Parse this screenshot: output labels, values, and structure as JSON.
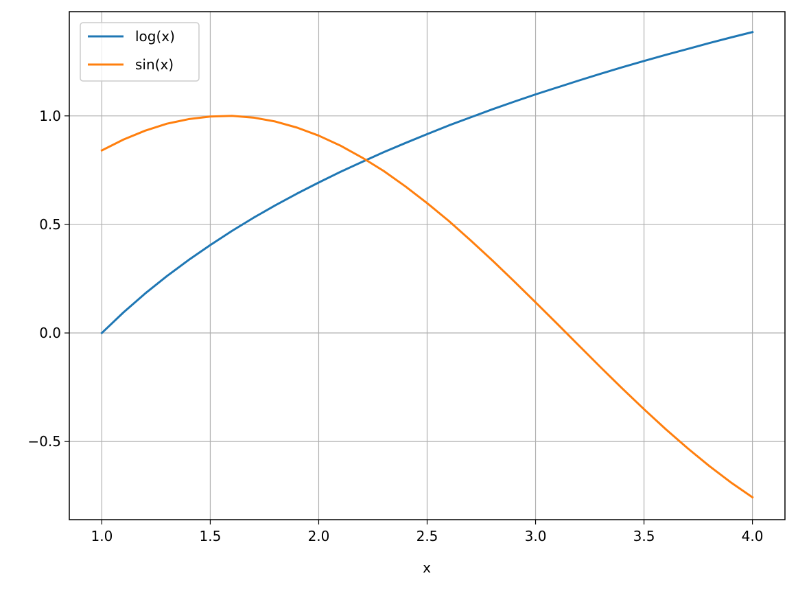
{
  "chart_data": {
    "type": "line",
    "xlabel": "x",
    "ylabel": "",
    "xlim": [
      0.85,
      4.15
    ],
    "ylim": [
      -0.86,
      1.48
    ],
    "x_ticks": [
      1.0,
      1.5,
      2.0,
      2.5,
      3.0,
      3.5,
      4.0
    ],
    "x_tick_labels": [
      "1.0",
      "1.5",
      "2.0",
      "2.5",
      "3.0",
      "3.5",
      "4.0"
    ],
    "y_ticks": [
      -0.5,
      0.0,
      0.5,
      1.0
    ],
    "y_tick_labels": [
      "−0.5",
      "0.0",
      "0.5",
      "1.0"
    ],
    "grid": true,
    "legend_position": "upper-left",
    "x": [
      1.0,
      1.1,
      1.2,
      1.3,
      1.4,
      1.5,
      1.6,
      1.7,
      1.8,
      1.9,
      2.0,
      2.1,
      2.2,
      2.3,
      2.4,
      2.5,
      2.6,
      2.7,
      2.8,
      2.9,
      3.0,
      3.1,
      3.2,
      3.3,
      3.4,
      3.5,
      3.6,
      3.7,
      3.8,
      3.9,
      4.0
    ],
    "series": [
      {
        "name": "log(x)",
        "color": "#1f77b4",
        "values": [
          0.0,
          0.095,
          0.182,
          0.262,
          0.336,
          0.405,
          0.47,
          0.531,
          0.588,
          0.642,
          0.693,
          0.742,
          0.788,
          0.833,
          0.875,
          0.916,
          0.956,
          0.993,
          1.03,
          1.065,
          1.099,
          1.131,
          1.163,
          1.194,
          1.224,
          1.253,
          1.281,
          1.308,
          1.335,
          1.361,
          1.386
        ]
      },
      {
        "name": "sin(x)",
        "color": "#ff7f0e",
        "values": [
          0.841,
          0.891,
          0.932,
          0.964,
          0.985,
          0.997,
          1.0,
          0.992,
          0.974,
          0.946,
          0.909,
          0.863,
          0.808,
          0.746,
          0.675,
          0.598,
          0.516,
          0.427,
          0.335,
          0.239,
          0.141,
          0.042,
          -0.058,
          -0.158,
          -0.256,
          -0.351,
          -0.443,
          -0.53,
          -0.612,
          -0.688,
          -0.757
        ]
      }
    ]
  }
}
